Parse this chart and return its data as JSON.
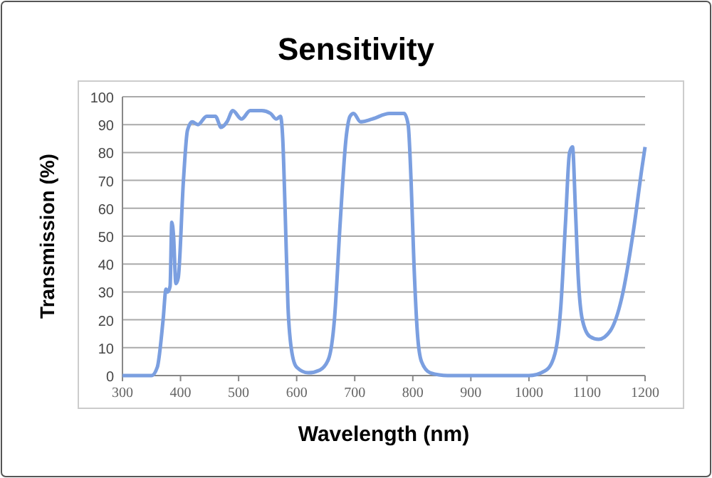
{
  "chart_data": {
    "type": "line",
    "title": "Sensitivity",
    "xlabel": "Wavelength (nm)",
    "ylabel": "Transmission (%)",
    "x": [
      300,
      350,
      360,
      370,
      375,
      378,
      382,
      385,
      388,
      392,
      396,
      405,
      412,
      420,
      430,
      445,
      460,
      470,
      480,
      490,
      505,
      520,
      540,
      555,
      565,
      572,
      576,
      580,
      585,
      592,
      600,
      620,
      640,
      655,
      665,
      675,
      685,
      692,
      698,
      710,
      730,
      760,
      785,
      792,
      797,
      802,
      808,
      815,
      830,
      860,
      1000,
      1030,
      1045,
      1055,
      1063,
      1070,
      1075,
      1080,
      1085,
      1092,
      1105,
      1120,
      1140,
      1160,
      1180,
      1195,
      1200
    ],
    "series": [
      {
        "color": "#7b9fe0",
        "values": [
          0,
          0,
          3,
          20,
          31,
          30,
          32,
          55,
          50,
          33,
          35,
          70,
          88,
          91,
          90,
          93,
          93,
          89,
          91,
          95,
          92,
          95,
          95,
          94,
          92,
          93,
          85,
          60,
          25,
          8,
          3,
          1,
          2,
          6,
          20,
          55,
          85,
          93,
          94,
          91,
          92,
          94,
          94,
          90,
          70,
          40,
          15,
          5,
          1,
          0,
          0,
          2,
          8,
          25,
          55,
          80,
          82,
          60,
          35,
          20,
          14,
          13,
          16,
          28,
          52,
          75,
          82
        ]
      }
    ],
    "xlim": [
      300,
      1200
    ],
    "xticks": [
      300,
      400,
      500,
      600,
      700,
      800,
      900,
      1000,
      1100,
      1200
    ],
    "ylim": [
      0,
      100
    ],
    "yticks": [
      0,
      10,
      20,
      30,
      40,
      50,
      60,
      70,
      80,
      90,
      100
    ],
    "grid": "y",
    "marker": "none",
    "line_style": "solid"
  }
}
